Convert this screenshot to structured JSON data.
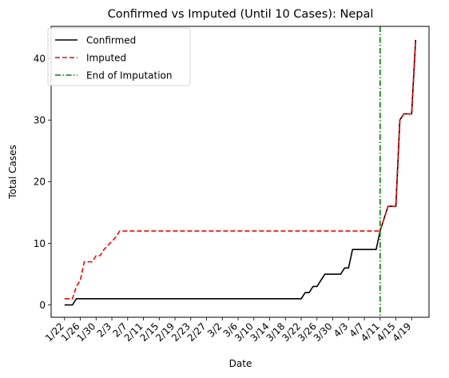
{
  "chart_data": {
    "type": "line",
    "title": "Confirmed vs Imputed (Until 10 Cases): Nepal",
    "xlabel": "Date",
    "ylabel": "Total Cases",
    "x_start": "2020-01-22",
    "x_tick_labels": [
      "1/22",
      "1/26",
      "1/30",
      "2/3",
      "2/7",
      "2/11",
      "2/15",
      "2/19",
      "2/23",
      "2/27",
      "3/2",
      "3/6",
      "3/10",
      "3/14",
      "3/18",
      "3/22",
      "3/26",
      "3/30",
      "4/3",
      "4/7",
      "4/11",
      "4/15",
      "4/19"
    ],
    "ylim": [
      -2,
      45.2
    ],
    "y_ticks": [
      0,
      10,
      20,
      30,
      40
    ],
    "grid": false,
    "legend_position": "top-left",
    "vline": {
      "name": "End of Imputation",
      "x": "4/11",
      "color": "#008000",
      "style": "dash-dot"
    },
    "series": [
      {
        "name": "Confirmed",
        "color": "#000000",
        "style": "solid",
        "points": [
          [
            "1/22",
            0
          ],
          [
            "1/24",
            0
          ],
          [
            "1/25",
            1
          ],
          [
            "3/22",
            1
          ],
          [
            "3/23",
            2
          ],
          [
            "3/24",
            2
          ],
          [
            "3/25",
            3
          ],
          [
            "3/26",
            3
          ],
          [
            "3/27",
            4
          ],
          [
            "3/28",
            5
          ],
          [
            "3/30",
            5
          ],
          [
            "4/1",
            5
          ],
          [
            "4/2",
            6
          ],
          [
            "4/3",
            6
          ],
          [
            "4/4",
            9
          ],
          [
            "4/10",
            9
          ],
          [
            "4/11",
            12
          ],
          [
            "4/13",
            16
          ],
          [
            "4/15",
            16
          ],
          [
            "4/16",
            30
          ],
          [
            "4/17",
            31
          ],
          [
            "4/19",
            31
          ],
          [
            "4/20",
            43
          ]
        ]
      },
      {
        "name": "Imputed",
        "color": "#ff0000",
        "style": "dashed",
        "points": [
          [
            "1/22",
            1
          ],
          [
            "1/24",
            1
          ],
          [
            "1/25",
            3
          ],
          [
            "1/26",
            4
          ],
          [
            "1/27",
            7
          ],
          [
            "1/29",
            7
          ],
          [
            "1/30",
            8
          ],
          [
            "1/31",
            8
          ],
          [
            "2/1",
            9
          ],
          [
            "2/4",
            11
          ],
          [
            "2/5",
            12
          ],
          [
            "4/11",
            12
          ],
          [
            "4/13",
            16
          ],
          [
            "4/15",
            16
          ],
          [
            "4/16",
            30
          ],
          [
            "4/17",
            31
          ],
          [
            "4/19",
            31
          ],
          [
            "4/20",
            43
          ]
        ]
      }
    ]
  }
}
